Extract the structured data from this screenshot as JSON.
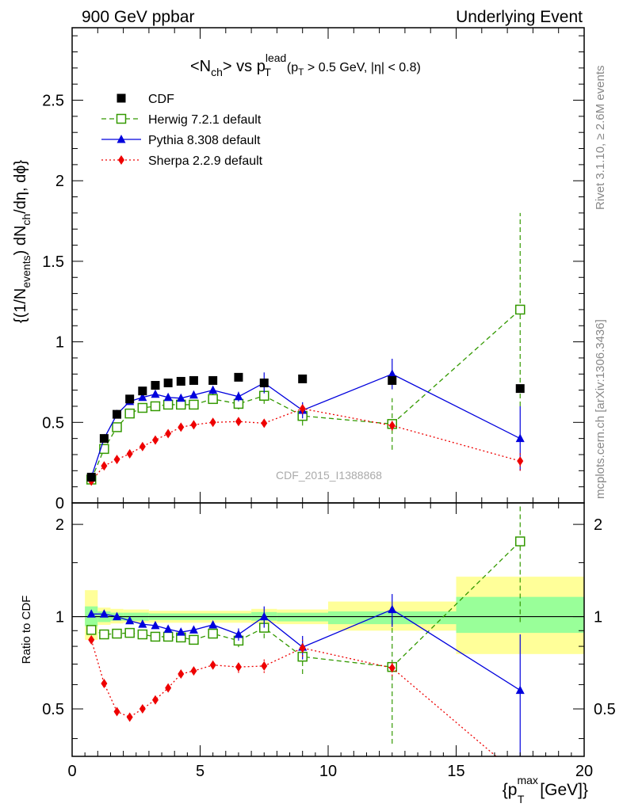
{
  "header": {
    "left": "900 GeV ppbar",
    "right": "Underlying Event"
  },
  "side_labels": {
    "rivet": "Rivet 3.1.10, ≥ 2.6M events",
    "mcplots": "mcplots.cern.ch [arXiv:1306.3436]"
  },
  "plot_title": {
    "main": "<N",
    "main_sub": "ch",
    "main_mid": "> vs p",
    "main_sup": "lead",
    "main_sub2": "T",
    "cut_open": "(p",
    "cut_sub": "T",
    "cut_rest": " > 0.5 GeV, |η| < 0.8)"
  },
  "watermark": "CDF_2015_I1388868",
  "ylabel_main": {
    "p1": "{(1/N",
    "s1": "events",
    "p2": ") dN",
    "s2": "ch",
    "p3": "/dη, dϕ}"
  },
  "ylabel_ratio": "Ratio to CDF",
  "xlabel": {
    "p1": "{p",
    "sup": "max",
    "sub": "T",
    "p2": " [GeV]}"
  },
  "colors": {
    "cdf": "#000000",
    "herwig": "#339900",
    "pythia": "#0000dd",
    "sherpa": "#ee0000",
    "band_outer": "#ffff99",
    "band_inner": "#99ff99"
  },
  "chart_data": [
    {
      "type": "line",
      "panel": "main",
      "xlim": [
        0,
        20
      ],
      "ylim": [
        0,
        2.95
      ],
      "xticks": [
        0,
        5,
        10,
        15,
        20
      ],
      "yticks": [
        0.5,
        1,
        1.5,
        2,
        2.5
      ],
      "ytick_labels": [
        "0.5",
        "1",
        "1.5",
        "2",
        "2.5"
      ],
      "xtick_labels": [
        "0",
        "5",
        "10",
        "15",
        "20"
      ],
      "legend_position": "top-left",
      "series": [
        {
          "name": "CDF",
          "style": "markers",
          "marker": "square-filled",
          "points": [
            {
              "x": 0.75,
              "y": 0.16
            },
            {
              "x": 1.25,
              "y": 0.4
            },
            {
              "x": 1.75,
              "y": 0.55
            },
            {
              "x": 2.25,
              "y": 0.645
            },
            {
              "x": 2.75,
              "y": 0.695
            },
            {
              "x": 3.25,
              "y": 0.73
            },
            {
              "x": 3.75,
              "y": 0.745
            },
            {
              "x": 4.25,
              "y": 0.755
            },
            {
              "x": 4.75,
              "y": 0.76
            },
            {
              "x": 5.5,
              "y": 0.76
            },
            {
              "x": 6.5,
              "y": 0.78
            },
            {
              "x": 7.5,
              "y": 0.745
            },
            {
              "x": 9.0,
              "y": 0.77
            },
            {
              "x": 12.5,
              "y": 0.76
            },
            {
              "x": 17.5,
              "y": 0.71
            }
          ]
        },
        {
          "name": "Herwig 7.2.1 default",
          "style": "dashed",
          "marker": "square-open",
          "points": [
            {
              "x": 0.75,
              "y": 0.145,
              "err": 0.01
            },
            {
              "x": 1.25,
              "y": 0.335,
              "err": 0.02
            },
            {
              "x": 1.75,
              "y": 0.47,
              "err": 0.02
            },
            {
              "x": 2.25,
              "y": 0.555,
              "err": 0.02
            },
            {
              "x": 2.75,
              "y": 0.59,
              "err": 0.02
            },
            {
              "x": 3.25,
              "y": 0.6,
              "err": 0.02
            },
            {
              "x": 3.75,
              "y": 0.61,
              "err": 0.02
            },
            {
              "x": 4.25,
              "y": 0.61,
              "err": 0.02
            },
            {
              "x": 4.75,
              "y": 0.61,
              "err": 0.025
            },
            {
              "x": 5.5,
              "y": 0.645,
              "err": 0.03
            },
            {
              "x": 6.5,
              "y": 0.615,
              "err": 0.035
            },
            {
              "x": 7.5,
              "y": 0.665,
              "err": 0.05
            },
            {
              "x": 9.0,
              "y": 0.54,
              "err": 0.06
            },
            {
              "x": 12.5,
              "y": 0.49,
              "err": 0.16
            },
            {
              "x": 17.5,
              "y": 1.2,
              "err": 0.6
            }
          ]
        },
        {
          "name": "Pythia 8.308 default",
          "style": "solid",
          "marker": "triangle-filled",
          "points": [
            {
              "x": 0.75,
              "y": 0.16,
              "err": 0.01
            },
            {
              "x": 1.25,
              "y": 0.4,
              "err": 0.015
            },
            {
              "x": 1.75,
              "y": 0.55,
              "err": 0.015
            },
            {
              "x": 2.25,
              "y": 0.63,
              "err": 0.015
            },
            {
              "x": 2.75,
              "y": 0.655,
              "err": 0.015
            },
            {
              "x": 3.25,
              "y": 0.675,
              "err": 0.015
            },
            {
              "x": 3.75,
              "y": 0.655,
              "err": 0.02
            },
            {
              "x": 4.25,
              "y": 0.65,
              "err": 0.02
            },
            {
              "x": 4.75,
              "y": 0.67,
              "err": 0.02
            },
            {
              "x": 5.5,
              "y": 0.7,
              "err": 0.025
            },
            {
              "x": 6.5,
              "y": 0.66,
              "err": 0.03
            },
            {
              "x": 7.5,
              "y": 0.745,
              "err": 0.065
            },
            {
              "x": 9.0,
              "y": 0.575,
              "err": 0.05
            },
            {
              "x": 12.5,
              "y": 0.8,
              "err": 0.095
            },
            {
              "x": 17.5,
              "y": 0.4,
              "err": 0.2
            }
          ]
        },
        {
          "name": "Sherpa 2.2.9 default",
          "style": "dotted",
          "marker": "diamond-filled",
          "points": [
            {
              "x": 0.75,
              "y": 0.135,
              "err": 0.01
            },
            {
              "x": 1.25,
              "y": 0.23,
              "err": 0.01
            },
            {
              "x": 1.75,
              "y": 0.27,
              "err": 0.01
            },
            {
              "x": 2.25,
              "y": 0.305,
              "err": 0.01
            },
            {
              "x": 2.75,
              "y": 0.35,
              "err": 0.01
            },
            {
              "x": 3.25,
              "y": 0.39,
              "err": 0.01
            },
            {
              "x": 3.75,
              "y": 0.43,
              "err": 0.01
            },
            {
              "x": 4.25,
              "y": 0.47,
              "err": 0.01
            },
            {
              "x": 4.75,
              "y": 0.485,
              "err": 0.015
            },
            {
              "x": 5.5,
              "y": 0.5,
              "err": 0.015
            },
            {
              "x": 6.5,
              "y": 0.505,
              "err": 0.02
            },
            {
              "x": 7.5,
              "y": 0.495,
              "err": 0.025
            },
            {
              "x": 9.0,
              "y": 0.585,
              "err": 0.035
            },
            {
              "x": 12.5,
              "y": 0.48,
              "err": 0.03
            },
            {
              "x": 17.5,
              "y": 0.26,
              "err": 0.06
            }
          ]
        }
      ]
    },
    {
      "type": "line",
      "panel": "ratio",
      "xlim": [
        0,
        20
      ],
      "ylim": [
        0.35,
        2.35
      ],
      "log_y": true,
      "yticks": [
        0.5,
        1,
        2
      ],
      "ytick_labels": [
        "0.5",
        "1",
        "2"
      ],
      "reference_line": 1,
      "bands": [
        {
          "x0": 0.5,
          "x1": 1.0,
          "outer": [
            0.84,
            1.22
          ],
          "inner": [
            0.93,
            1.08
          ]
        },
        {
          "x0": 1.0,
          "x1": 1.5,
          "outer": [
            0.94,
            1.07
          ],
          "inner": [
            0.96,
            1.04
          ]
        },
        {
          "x0": 1.5,
          "x1": 2.0,
          "outer": [
            0.95,
            1.06
          ],
          "inner": [
            0.97,
            1.03
          ]
        },
        {
          "x0": 2.0,
          "x1": 3.0,
          "outer": [
            0.955,
            1.055
          ],
          "inner": [
            0.97,
            1.03
          ]
        },
        {
          "x0": 3.0,
          "x1": 5.0,
          "outer": [
            0.955,
            1.045
          ],
          "inner": [
            0.975,
            1.025
          ]
        },
        {
          "x0": 5.0,
          "x1": 7.0,
          "outer": [
            0.955,
            1.045
          ],
          "inner": [
            0.975,
            1.025
          ]
        },
        {
          "x0": 7.0,
          "x1": 8.0,
          "outer": [
            0.95,
            1.06
          ],
          "inner": [
            0.97,
            1.035
          ]
        },
        {
          "x0": 8.0,
          "x1": 10.0,
          "outer": [
            0.945,
            1.055
          ],
          "inner": [
            0.965,
            1.03
          ]
        },
        {
          "x0": 10.0,
          "x1": 15.0,
          "outer": [
            0.9,
            1.12
          ],
          "inner": [
            0.945,
            1.04
          ]
        },
        {
          "x0": 15.0,
          "x1": 20.0,
          "outer": [
            0.755,
            1.35
          ],
          "inner": [
            0.885,
            1.16
          ]
        }
      ],
      "series": [
        {
          "name": "Herwig 7.2.1 default",
          "style": "dashed",
          "marker": "square-open",
          "points": [
            {
              "x": 0.75,
              "y": 0.905,
              "err": 0.01
            },
            {
              "x": 1.25,
              "y": 0.875,
              "err": 0.01
            },
            {
              "x": 1.75,
              "y": 0.88,
              "err": 0.01
            },
            {
              "x": 2.25,
              "y": 0.885,
              "err": 0.01
            },
            {
              "x": 2.75,
              "y": 0.875,
              "err": 0.01
            },
            {
              "x": 3.25,
              "y": 0.86,
              "err": 0.01
            },
            {
              "x": 3.75,
              "y": 0.86,
              "err": 0.01
            },
            {
              "x": 4.25,
              "y": 0.855,
              "err": 0.015
            },
            {
              "x": 4.75,
              "y": 0.84,
              "err": 0.02
            },
            {
              "x": 5.5,
              "y": 0.88,
              "err": 0.025
            },
            {
              "x": 6.5,
              "y": 0.835,
              "err": 0.04
            },
            {
              "x": 7.5,
              "y": 0.92,
              "err": 0.07
            },
            {
              "x": 9.0,
              "y": 0.74,
              "err": 0.09
            },
            {
              "x": 12.5,
              "y": 0.685,
              "err": 0.3
            },
            {
              "x": 17.5,
              "y": 1.76,
              "err": 0.8
            }
          ]
        },
        {
          "name": "Pythia 8.308 default",
          "style": "solid",
          "marker": "triangle-filled",
          "points": [
            {
              "x": 0.75,
              "y": 1.02,
              "err": 0.01
            },
            {
              "x": 1.25,
              "y": 1.02,
              "err": 0.01
            },
            {
              "x": 1.75,
              "y": 1.0,
              "err": 0.01
            },
            {
              "x": 2.25,
              "y": 0.97,
              "err": 0.01
            },
            {
              "x": 2.75,
              "y": 0.945,
              "err": 0.01
            },
            {
              "x": 3.25,
              "y": 0.935,
              "err": 0.01
            },
            {
              "x": 3.75,
              "y": 0.91,
              "err": 0.015
            },
            {
              "x": 4.25,
              "y": 0.89,
              "err": 0.015
            },
            {
              "x": 4.75,
              "y": 0.905,
              "err": 0.02
            },
            {
              "x": 5.5,
              "y": 0.94,
              "err": 0.025
            },
            {
              "x": 6.5,
              "y": 0.875,
              "err": 0.04
            },
            {
              "x": 7.5,
              "y": 1.0,
              "err": 0.08
            },
            {
              "x": 9.0,
              "y": 0.795,
              "err": 0.07
            },
            {
              "x": 12.5,
              "y": 1.055,
              "err": 0.13
            },
            {
              "x": 17.5,
              "y": 0.575,
              "err": 0.3
            }
          ]
        },
        {
          "name": "Sherpa 2.2.9 default",
          "style": "dotted",
          "marker": "diamond-filled",
          "points": [
            {
              "x": 0.75,
              "y": 0.84,
              "err": 0.01
            },
            {
              "x": 1.25,
              "y": 0.605,
              "err": 0.01
            },
            {
              "x": 1.75,
              "y": 0.49,
              "err": 0.01
            },
            {
              "x": 2.25,
              "y": 0.47,
              "err": 0.01
            },
            {
              "x": 2.75,
              "y": 0.5,
              "err": 0.01
            },
            {
              "x": 3.25,
              "y": 0.535,
              "err": 0.01
            },
            {
              "x": 3.75,
              "y": 0.585,
              "err": 0.01
            },
            {
              "x": 4.25,
              "y": 0.65,
              "err": 0.015
            },
            {
              "x": 4.75,
              "y": 0.665,
              "err": 0.015
            },
            {
              "x": 5.5,
              "y": 0.695,
              "err": 0.02
            },
            {
              "x": 6.5,
              "y": 0.685,
              "err": 0.03
            },
            {
              "x": 7.5,
              "y": 0.69,
              "err": 0.035
            },
            {
              "x": 9.0,
              "y": 0.79,
              "err": 0.05
            },
            {
              "x": 12.5,
              "y": 0.68,
              "err": 0.04
            },
            {
              "x": 17.5,
              "y": 0.3,
              "err": 0.05
            }
          ]
        }
      ]
    }
  ]
}
